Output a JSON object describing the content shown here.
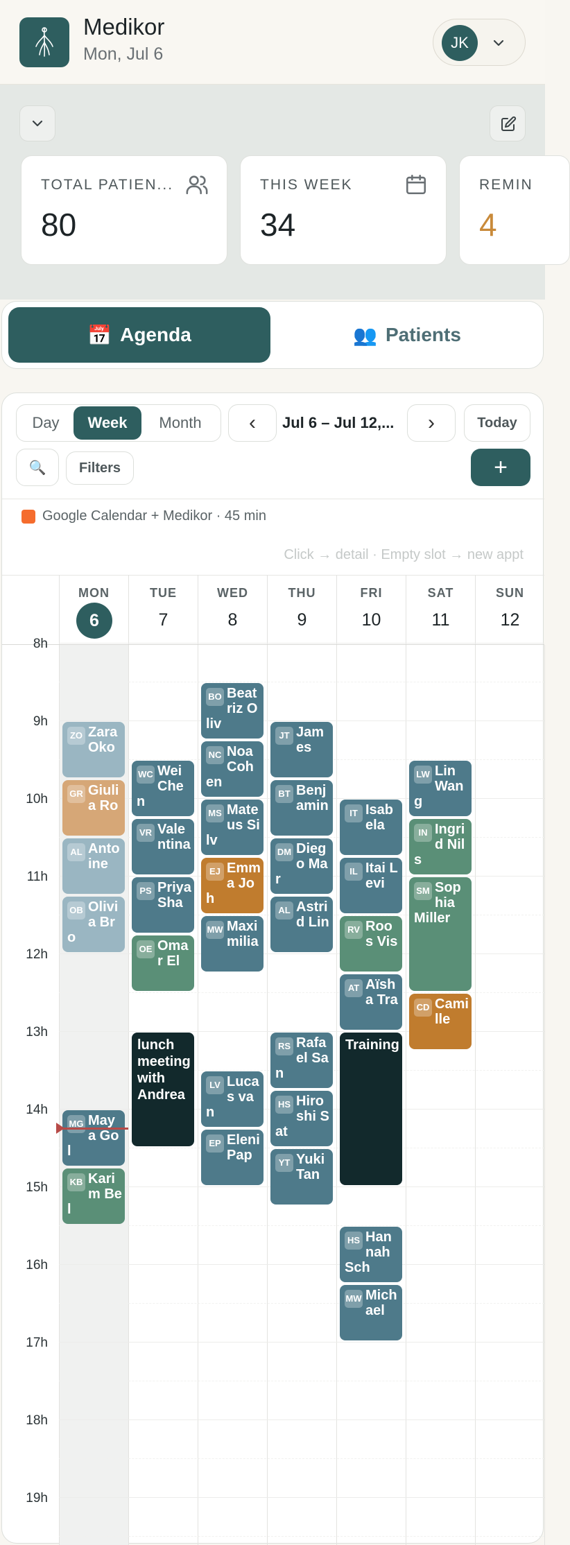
{
  "header": {
    "app_name": "Medikor",
    "date": "Mon, Jul 6",
    "user_initials": "JK"
  },
  "stats": [
    {
      "label": "TOTAL PATIEN...",
      "value": "80",
      "icon": "users-icon",
      "color": "#1d2427"
    },
    {
      "label": "THIS WEEK",
      "value": "34",
      "icon": "calendar-icon",
      "color": "#1d2427"
    },
    {
      "label": "REMIN",
      "value": "4",
      "icon": "bell-icon",
      "color": "#c98a3a"
    }
  ],
  "main_tabs": {
    "agenda": {
      "emoji": "📅",
      "label": "Agenda"
    },
    "patients": {
      "emoji": "👥",
      "label": "Patients"
    }
  },
  "toolbar": {
    "views": [
      "Day",
      "Week",
      "Month"
    ],
    "active_view": "Week",
    "prev": "‹",
    "next": "›",
    "range": "Jul 6 – Jul 12,...",
    "today": "Today",
    "search_icon": "🔍",
    "filters": "Filters",
    "add": "+"
  },
  "source": {
    "label": "Google Calendar + Medikor · 45 min",
    "color": "#f56c2d"
  },
  "hint": "Click → detail · Empty slot → new appt",
  "days": [
    {
      "name": "MON",
      "num": "6",
      "today": true
    },
    {
      "name": "TUE",
      "num": "7"
    },
    {
      "name": "WED",
      "num": "8"
    },
    {
      "name": "THU",
      "num": "9"
    },
    {
      "name": "FRI",
      "num": "10"
    },
    {
      "name": "SAT",
      "num": "11"
    },
    {
      "name": "SUN",
      "num": "12"
    }
  ],
  "hours": [
    "8h",
    "9h",
    "10h",
    "11h",
    "12h",
    "13h",
    "14h",
    "15h",
    "16h",
    "17h",
    "18h",
    "19h"
  ],
  "now_time": "14:15",
  "colors": {
    "blue": "#4e7a8a",
    "pale": "#9ab6c2",
    "green": "#5a8f77",
    "orange": "#c07c2e",
    "tan": "#d6a777",
    "dark": "#12292c"
  },
  "appointments": [
    {
      "day": 0,
      "start": "9:00",
      "end": "9:45",
      "initials": "ZO",
      "name": "Zara Oko",
      "color": "pale"
    },
    {
      "day": 0,
      "start": "9:45",
      "end": "10:30",
      "initials": "GR",
      "name": "Giulia Ro",
      "color": "tan"
    },
    {
      "day": 0,
      "start": "10:30",
      "end": "11:15",
      "initials": "AL",
      "name": "Antoine",
      "color": "pale"
    },
    {
      "day": 0,
      "start": "11:15",
      "end": "12:00",
      "initials": "OB",
      "name": "Olivia Bro",
      "color": "pale"
    },
    {
      "day": 0,
      "start": "14:00",
      "end": "14:45",
      "initials": "MG",
      "name": "Maya Gol",
      "color": "blue"
    },
    {
      "day": 0,
      "start": "14:45",
      "end": "15:30",
      "initials": "KB",
      "name": "Karim Bel",
      "color": "green"
    },
    {
      "day": 1,
      "start": "9:30",
      "end": "10:15",
      "initials": "WC",
      "name": "Wei Chen",
      "color": "blue"
    },
    {
      "day": 1,
      "start": "10:15",
      "end": "11:00",
      "initials": "VR",
      "name": "Valentina",
      "color": "blue"
    },
    {
      "day": 1,
      "start": "11:00",
      "end": "11:45",
      "initials": "PS",
      "name": "Priya Sha",
      "color": "blue"
    },
    {
      "day": 1,
      "start": "11:45",
      "end": "12:30",
      "initials": "OE",
      "name": "Omar El",
      "color": "green"
    },
    {
      "day": 1,
      "start": "13:00",
      "end": "14:30",
      "initials": "",
      "name": "lunch meeting with Andrea",
      "color": "dark"
    },
    {
      "day": 2,
      "start": "8:30",
      "end": "9:15",
      "initials": "BO",
      "name": "Beatriz Oliv",
      "color": "blue"
    },
    {
      "day": 2,
      "start": "9:15",
      "end": "10:00",
      "initials": "NC",
      "name": "Noa Cohen",
      "color": "blue"
    },
    {
      "day": 2,
      "start": "10:00",
      "end": "10:45",
      "initials": "MS",
      "name": "Mateus Silv",
      "color": "blue"
    },
    {
      "day": 2,
      "start": "10:45",
      "end": "11:30",
      "initials": "EJ",
      "name": "Emma Joh",
      "color": "orange"
    },
    {
      "day": 2,
      "start": "11:30",
      "end": "12:15",
      "initials": "MW",
      "name": "Maximilia",
      "color": "blue"
    },
    {
      "day": 2,
      "start": "13:30",
      "end": "14:15",
      "initials": "LV",
      "name": "Lucas van",
      "color": "blue"
    },
    {
      "day": 2,
      "start": "14:15",
      "end": "15:00",
      "initials": "EP",
      "name": "Eleni Pap",
      "color": "blue"
    },
    {
      "day": 3,
      "start": "9:00",
      "end": "9:45",
      "initials": "JT",
      "name": "James",
      "color": "blue"
    },
    {
      "day": 3,
      "start": "9:45",
      "end": "10:30",
      "initials": "BT",
      "name": "Benjamin",
      "color": "blue"
    },
    {
      "day": 3,
      "start": "10:30",
      "end": "11:15",
      "initials": "DM",
      "name": "Diego Mar",
      "color": "blue"
    },
    {
      "day": 3,
      "start": "11:15",
      "end": "12:00",
      "initials": "AL",
      "name": "Astrid Lin",
      "color": "blue"
    },
    {
      "day": 3,
      "start": "13:00",
      "end": "13:45",
      "initials": "RS",
      "name": "Rafael San",
      "color": "blue"
    },
    {
      "day": 3,
      "start": "13:45",
      "end": "14:30",
      "initials": "HS",
      "name": "Hiroshi Sat",
      "color": "blue"
    },
    {
      "day": 3,
      "start": "14:30",
      "end": "15:15",
      "initials": "YT",
      "name": "Yuki Tan",
      "color": "blue"
    },
    {
      "day": 4,
      "start": "10:00",
      "end": "10:45",
      "initials": "IT",
      "name": "Isabela",
      "color": "blue"
    },
    {
      "day": 4,
      "start": "10:45",
      "end": "11:30",
      "initials": "IL",
      "name": "Itai Levi",
      "color": "blue"
    },
    {
      "day": 4,
      "start": "11:30",
      "end": "12:15",
      "initials": "RV",
      "name": "Roos Vis",
      "color": "green"
    },
    {
      "day": 4,
      "start": "12:15",
      "end": "13:00",
      "initials": "AT",
      "name": "Aïsha Tra",
      "color": "blue"
    },
    {
      "day": 4,
      "start": "13:00",
      "end": "15:00",
      "initials": "",
      "name": "Training",
      "color": "dark"
    },
    {
      "day": 4,
      "start": "15:30",
      "end": "16:15",
      "initials": "HS",
      "name": "Hannah Sch",
      "color": "blue"
    },
    {
      "day": 4,
      "start": "16:15",
      "end": "17:00",
      "initials": "MW",
      "name": "Michael",
      "color": "blue"
    },
    {
      "day": 5,
      "start": "9:30",
      "end": "10:15",
      "initials": "LW",
      "name": "Lin Wang",
      "color": "blue"
    },
    {
      "day": 5,
      "start": "10:15",
      "end": "11:00",
      "initials": "IN",
      "name": "Ingrid Nils",
      "color": "green"
    },
    {
      "day": 5,
      "start": "11:00",
      "end": "12:30",
      "initials": "SM",
      "name": "Sophia Miller",
      "color": "green"
    },
    {
      "day": 5,
      "start": "12:30",
      "end": "13:15",
      "initials": "CD",
      "name": "Camille",
      "color": "orange"
    }
  ]
}
